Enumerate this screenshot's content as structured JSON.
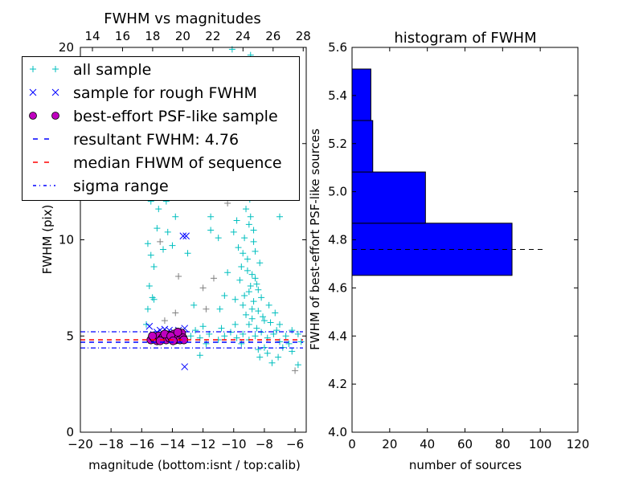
{
  "chart_data": [
    {
      "type": "scatter",
      "title": "FWHM vs magnitudes",
      "xlabel": "magnitude (bottom:isnt / top:calib)",
      "ylabel": "FWHM (pix)",
      "xlim": [
        -20,
        -5.27
      ],
      "ylim": [
        0,
        20
      ],
      "top_xlim": [
        13.2,
        28.2
      ],
      "xticks": [
        "−20",
        "−18",
        "−16",
        "−14",
        "−12",
        "−10",
        "−8",
        "−6"
      ],
      "xtick_values": [
        -20,
        -18,
        -16,
        -14,
        -12,
        -10,
        -8,
        -6
      ],
      "top_xticks": [
        "14",
        "16",
        "18",
        "20",
        "22",
        "24",
        "26",
        "28"
      ],
      "top_xtick_values": [
        14,
        16,
        18,
        20,
        22,
        24,
        26,
        28
      ],
      "yticks": [
        "0",
        "5",
        "10",
        "15",
        "20"
      ],
      "ytick_values": [
        0,
        5,
        10,
        15,
        20
      ],
      "grid": false,
      "legend_position": "top-left",
      "colors": {
        "all": "#00bfbf",
        "other": "#808080",
        "rough": "#0000ff",
        "psf": "#bf00bf",
        "resultant": "#0000ff",
        "median": "#ff0000",
        "sigma": "#0000ff"
      },
      "legend": [
        "all sample",
        "sample for rough FWHM",
        "best-effort PSF-like sample",
        "resultant FWHM: 4.76",
        "median FHWM of sequence",
        "sigma range"
      ],
      "series": {
        "all": [
          [
            -9.2,
            6.1
          ],
          [
            -9.0,
            7.3
          ],
          [
            -8.8,
            8.2
          ],
          [
            -9.1,
            9.0
          ],
          [
            -8.7,
            6.8
          ],
          [
            -8.5,
            7.7
          ],
          [
            -9.3,
            10.1
          ],
          [
            -8.9,
            11.2
          ],
          [
            -9.5,
            8.6
          ],
          [
            -8.6,
            9.4
          ],
          [
            -8.4,
            6.3
          ],
          [
            -8.2,
            7.0
          ],
          [
            -9.0,
            5.6
          ],
          [
            -8.8,
            5.9
          ],
          [
            -9.4,
            6.6
          ],
          [
            -8.3,
            8.8
          ],
          [
            -9.6,
            7.9
          ],
          [
            -8.1,
            6.0
          ],
          [
            -9.7,
            9.6
          ],
          [
            -8.95,
            12.1
          ],
          [
            -9.2,
            12.8
          ],
          [
            -8.7,
            10.5
          ],
          [
            -9.8,
            11.0
          ],
          [
            -8.5,
            5.4
          ],
          [
            -9.9,
            6.9
          ],
          [
            -8.0,
            5.8
          ],
          [
            -9.1,
            13.5
          ],
          [
            -9.4,
            14.6
          ],
          [
            -9.6,
            12.2
          ],
          [
            -8.8,
            13.9
          ],
          [
            -10.2,
            13.0
          ],
          [
            -10.0,
            10.4
          ],
          [
            -10.4,
            8.3
          ],
          [
            -10.6,
            7.1
          ],
          [
            -10.9,
            6.4
          ],
          [
            -7.7,
            6.6
          ],
          [
            -7.6,
            5.7
          ],
          [
            -7.3,
            6.2
          ],
          [
            -7.0,
            5.6
          ],
          [
            -9.3,
            16.3
          ],
          [
            -9.6,
            17.8
          ],
          [
            -8.9,
            19.6
          ],
          [
            -10.1,
            19.9
          ],
          [
            -9.0,
            15.2
          ],
          [
            -10.5,
            12.9
          ],
          [
            -11.5,
            11.2
          ],
          [
            -11.0,
            10.1
          ],
          [
            -7.0,
            11.2
          ],
          [
            -8.4,
            4.3
          ],
          [
            -8.3,
            3.9
          ],
          [
            -7.5,
            3.6
          ],
          [
            -7.1,
            3.9
          ],
          [
            -8.0,
            4.4
          ],
          [
            -5.8,
            3.5
          ],
          [
            -6.2,
            4.2
          ],
          [
            -9.5,
            4.6
          ],
          [
            -7.8,
            4.1
          ],
          [
            -12.8,
            5.0
          ],
          [
            -12.2,
            4.9
          ],
          [
            -11.6,
            5.1
          ],
          [
            -11.0,
            4.8
          ],
          [
            -10.6,
            5.0
          ],
          [
            -10.2,
            5.2
          ],
          [
            -9.8,
            4.9
          ],
          [
            -9.4,
            5.1
          ],
          [
            -9.0,
            4.8
          ],
          [
            -8.6,
            5.0
          ],
          [
            -8.2,
            5.2
          ],
          [
            -7.8,
            4.9
          ],
          [
            -7.4,
            5.1
          ],
          [
            -7.0,
            4.7
          ],
          [
            -6.6,
            5.0
          ],
          [
            -6.2,
            5.3
          ],
          [
            -5.8,
            5.1
          ],
          [
            -5.6,
            4.7
          ],
          [
            -12.5,
            5.3
          ],
          [
            -11.8,
            4.6
          ],
          [
            -10.8,
            5.4
          ],
          [
            -9.9,
            5.6
          ],
          [
            -7.2,
            5.3
          ],
          [
            -6.8,
            4.4
          ],
          [
            -6.4,
            4.6
          ],
          [
            -12.0,
            5.5
          ],
          [
            -15.6,
            9.8
          ],
          [
            -15.4,
            9.2
          ],
          [
            -15.2,
            8.6
          ],
          [
            -15.5,
            7.6
          ],
          [
            -15.3,
            7.0
          ],
          [
            -15.6,
            6.4
          ],
          [
            -15.2,
            6.9
          ],
          [
            -14.6,
            9.5
          ],
          [
            -14.3,
            10.4
          ],
          [
            -14.0,
            9.7
          ],
          [
            -13.8,
            11.2
          ],
          [
            -13.5,
            12.3
          ],
          [
            -14.9,
            11.6
          ],
          [
            -14.4,
            12.0
          ],
          [
            -15.0,
            10.6
          ],
          [
            -13.0,
            9.3
          ],
          [
            -12.6,
            6.6
          ],
          [
            -15.7,
            5.6
          ],
          [
            -15.4,
            12.0
          ],
          [
            -12.2,
            4.0
          ],
          [
            -11.5,
            10.5
          ],
          [
            -11.1,
            12.5
          ],
          [
            -13.4,
            14.6
          ],
          [
            -12.4,
            14.1
          ],
          [
            -8.9,
            7.6
          ],
          [
            -9.1,
            8.4
          ],
          [
            -8.6,
            8.0
          ],
          [
            -9.3,
            7.1
          ],
          [
            -8.7,
            9.9
          ],
          [
            -9.0,
            10.8
          ],
          [
            -8.4,
            7.4
          ],
          [
            -9.2,
            11.6
          ],
          [
            -8.8,
            6.4
          ],
          [
            -9.4,
            9.3
          ]
        ],
        "other": [
          [
            -13.6,
            8.1
          ],
          [
            -11.3,
            8.0
          ],
          [
            -12.0,
            7.5
          ],
          [
            -11.8,
            6.4
          ],
          [
            -14.5,
            5.8
          ],
          [
            -6.0,
            3.2
          ],
          [
            -12.3,
            12.2
          ],
          [
            -10.4,
            11.9
          ],
          [
            -13.8,
            6.2
          ],
          [
            -14.8,
            9.9
          ]
        ],
        "rough": [
          [
            -15.5,
            5.5
          ],
          [
            -15.0,
            5.2
          ],
          [
            -14.8,
            5.3
          ],
          [
            -14.5,
            5.35
          ],
          [
            -14.2,
            5.3
          ],
          [
            -13.9,
            5.2
          ],
          [
            -13.6,
            5.3
          ],
          [
            -13.2,
            5.4
          ],
          [
            -13.3,
            10.2
          ],
          [
            -13.1,
            10.2
          ],
          [
            -13.2,
            3.4
          ],
          [
            -14.0,
            5.1
          ]
        ],
        "psf": [
          [
            -15.4,
            4.8
          ],
          [
            -15.2,
            4.9
          ],
          [
            -15.0,
            4.75
          ],
          [
            -14.9,
            5.0
          ],
          [
            -14.7,
            4.85
          ],
          [
            -14.6,
            4.95
          ],
          [
            -14.4,
            4.8
          ],
          [
            -14.3,
            5.05
          ],
          [
            -14.2,
            4.9
          ],
          [
            -14.0,
            4.85
          ],
          [
            -13.9,
            5.1
          ],
          [
            -13.8,
            4.8
          ],
          [
            -13.7,
            4.95
          ],
          [
            -13.6,
            5.0
          ],
          [
            -13.5,
            4.8
          ],
          [
            -13.4,
            5.15
          ],
          [
            -13.3,
            4.9
          ],
          [
            -15.3,
            5.0
          ],
          [
            -14.8,
            4.75
          ],
          [
            -14.5,
            5.1
          ],
          [
            -14.1,
            5.0
          ],
          [
            -13.95,
            4.75
          ],
          [
            -13.65,
            5.2
          ],
          [
            -13.25,
            4.8
          ]
        ]
      },
      "lines": {
        "resultant": 4.76,
        "median": 4.8,
        "sigma_low": 4.38,
        "sigma_high": 5.22
      }
    },
    {
      "type": "bar",
      "orientation": "horizontal",
      "title": "histogram of FWHM",
      "xlabel": "number of sources",
      "ylabel": "FWHM of best-effort PSF-like sources",
      "xlim": [
        0,
        120
      ],
      "ylim": [
        4.0,
        5.6
      ],
      "xticks": [
        "0",
        "20",
        "40",
        "60",
        "80",
        "100",
        "120"
      ],
      "xtick_values": [
        0,
        20,
        40,
        60,
        80,
        100,
        120
      ],
      "yticks": [
        "4.0",
        "4.2",
        "4.4",
        "4.6",
        "4.8",
        "5.0",
        "5.2",
        "5.4",
        "5.6"
      ],
      "ytick_values": [
        4.0,
        4.2,
        4.4,
        4.6,
        4.8,
        5.0,
        5.2,
        5.4,
        5.6
      ],
      "bin_edges": [
        4.652,
        4.869,
        5.082,
        5.296,
        5.51
      ],
      "values": [
        85,
        39,
        11,
        10
      ],
      "bar_color": "#0000ff",
      "reference_line": {
        "value": 4.76,
        "extent": 102.5,
        "style": "dashed",
        "color": "#000000"
      },
      "grid": false
    }
  ]
}
